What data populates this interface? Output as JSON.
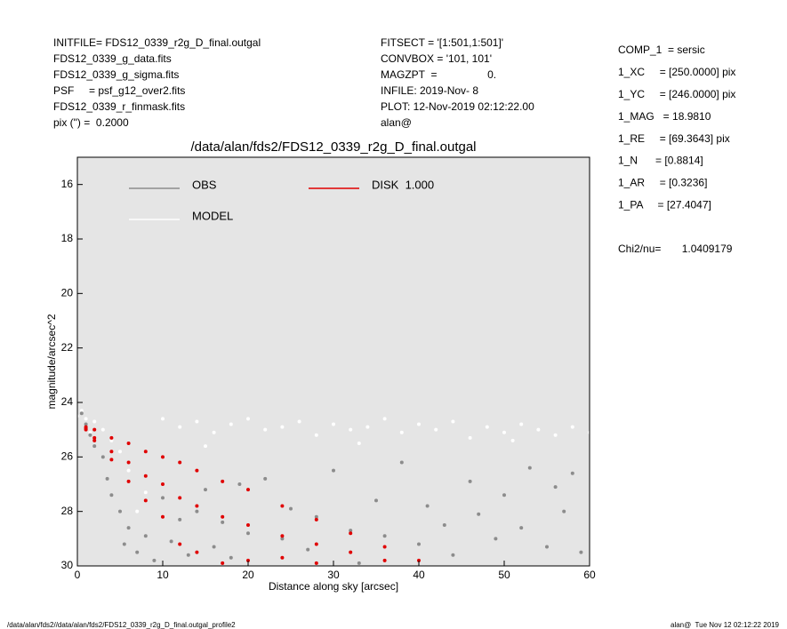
{
  "header": {
    "left": [
      "INITFILE= FDS12_0339_r2g_D_final.outgal",
      "FDS12_0339_g_data.fits",
      "FDS12_0339_g_sigma.fits",
      "PSF     = psf_g12_over2.fits",
      "FDS12_0339_r_finmask.fits",
      "pix (\") =  0.2000"
    ],
    "middle": [
      "FITSECT = '[1:501,1:501]'",
      "CONVBOX = '101, 101'",
      "MAGZPT  =                 0.",
      "INFILE: 2019-Nov- 8",
      "PLOT: 12-Nov-2019 02:12:22.00",
      "alan@"
    ]
  },
  "params": [
    "COMP_1  = sersic",
    "1_XC     = [250.0000] pix",
    "1_YC     = [246.0000] pix",
    "1_MAG   = 18.9810",
    "1_RE     = [69.3643] pix",
    "1_N      = [0.8814]",
    "1_AR     = [0.3236]",
    "1_PA     = [27.4047]"
  ],
  "chi2": "Chi2/nu=       1.0409179",
  "chart_data": {
    "type": "scatter",
    "title": "/data/alan/fds2/FDS12_0339_r2g_D_final.outgal",
    "xlabel": "Distance along sky [arcsec]",
    "ylabel": "magnitude/arcsec^2",
    "xlim": [
      0,
      60
    ],
    "ylim": [
      30,
      15
    ],
    "xticks": [
      0,
      10,
      20,
      30,
      40,
      50,
      60
    ],
    "yticks": [
      16,
      18,
      20,
      22,
      24,
      26,
      28,
      30
    ],
    "background": "#e5e5e5",
    "series": [
      {
        "name": "MODEL",
        "color": "#ffffff",
        "x": [
          0,
          0.5,
          1,
          2,
          3,
          4,
          5,
          6,
          8,
          10,
          12,
          14,
          16,
          18,
          20,
          22,
          24,
          26,
          28,
          30,
          32,
          34,
          36,
          38,
          40,
          42,
          44,
          46,
          48,
          50,
          52,
          54,
          56,
          58,
          60,
          1.5,
          7,
          15,
          33,
          51
        ],
        "y": [
          24.5,
          24.3,
          24.6,
          24.7,
          25.0,
          25.4,
          25.8,
          26.5,
          27.3,
          24.6,
          24.9,
          24.7,
          25.1,
          24.8,
          24.6,
          25.0,
          24.9,
          24.7,
          25.2,
          24.8,
          25.0,
          24.9,
          24.6,
          25.1,
          24.8,
          25.0,
          24.7,
          25.3,
          24.9,
          25.1,
          24.8,
          25.0,
          25.2,
          24.9,
          25.1,
          25.1,
          28.0,
          25.6,
          25.5,
          25.4
        ]
      },
      {
        "name": "OBS",
        "color": "#8c8c8c",
        "x": [
          0.5,
          1,
          1.5,
          2,
          3,
          3.5,
          4,
          5,
          5.5,
          6,
          7,
          8,
          9,
          10,
          11,
          12,
          13,
          14,
          15,
          16,
          17,
          18,
          19,
          20,
          22,
          24,
          25,
          27,
          28,
          30,
          32,
          33,
          35,
          36,
          38,
          40,
          41,
          43,
          44,
          46,
          47,
          49,
          50,
          52,
          53,
          55,
          56,
          57,
          58,
          59
        ],
        "y": [
          24.4,
          24.8,
          25.2,
          25.6,
          26.0,
          26.8,
          27.4,
          28.0,
          29.2,
          28.6,
          29.5,
          28.9,
          29.8,
          27.5,
          29.1,
          28.3,
          29.6,
          28.0,
          27.2,
          29.3,
          28.4,
          29.7,
          27.0,
          28.8,
          26.8,
          29.0,
          27.9,
          29.4,
          28.2,
          26.5,
          28.7,
          29.9,
          27.6,
          28.9,
          26.2,
          29.2,
          27.8,
          28.5,
          29.6,
          26.9,
          28.1,
          29.0,
          27.4,
          28.6,
          26.4,
          29.3,
          27.1,
          28.0,
          26.6,
          29.5
        ]
      },
      {
        "name": "DISK  1.000",
        "color": "#e00000",
        "x": [
          1,
          1,
          1,
          2,
          2,
          2,
          4,
          4,
          4,
          6,
          6,
          6,
          8,
          8,
          8,
          10,
          10,
          10,
          12,
          12,
          12,
          14,
          14,
          14,
          17,
          17,
          17,
          20,
          20,
          20,
          24,
          24,
          24,
          28,
          28,
          28,
          32,
          32,
          36,
          36,
          40
        ],
        "y": [
          24.9,
          24.95,
          25.0,
          25.0,
          25.3,
          25.4,
          25.3,
          25.8,
          26.1,
          25.5,
          26.2,
          26.9,
          25.8,
          26.7,
          27.6,
          26.0,
          27.0,
          28.2,
          26.2,
          27.5,
          29.2,
          26.5,
          27.8,
          29.5,
          26.9,
          28.2,
          29.9,
          27.2,
          28.5,
          29.8,
          27.8,
          28.9,
          29.7,
          28.3,
          29.2,
          29.9,
          28.8,
          29.5,
          29.3,
          29.8,
          29.8
        ]
      }
    ]
  },
  "footer": {
    "left": "/data/alan/fds2//data/alan/fds2/FDS12_0339_r2g_D_final.outgal_profile2",
    "right": "alan@  Tue Nov 12 02:12:22 2019"
  }
}
